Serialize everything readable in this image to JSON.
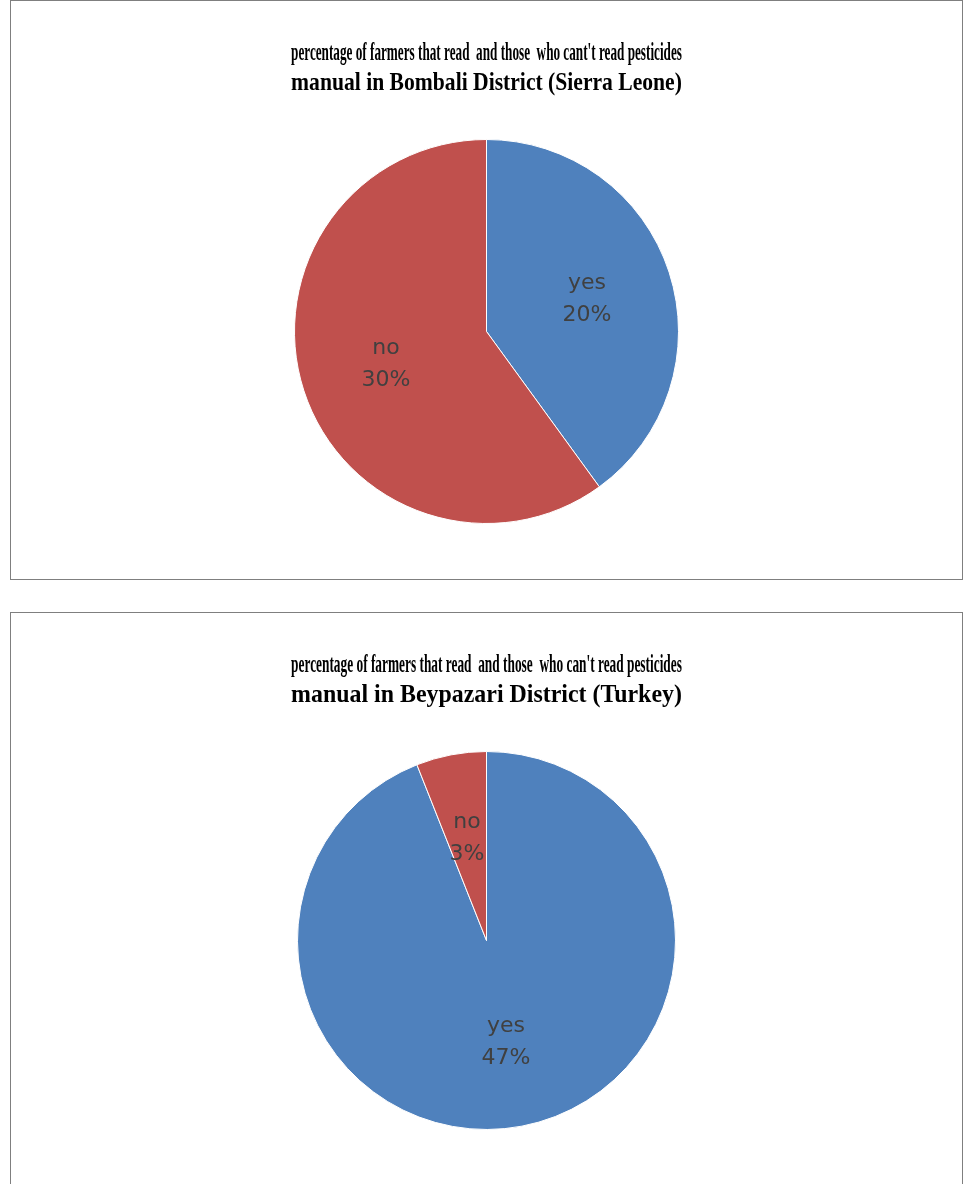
{
  "chart_data": [
    {
      "type": "pie",
      "title": "percentage of farmers that read  and those  who cant't read pesticides manual in Bombali District (Sierra Leone)",
      "categories": [
        "yes",
        "no"
      ],
      "values": [
        20,
        30
      ],
      "colors": [
        "#4f81bd",
        "#c0504d"
      ],
      "value_labels": [
        "20%",
        "30%"
      ],
      "legend": false
    },
    {
      "type": "pie",
      "title": "percentage of farmers that read  and those  who can't read pesticides manual in Beypazari District (Turkey)",
      "categories": [
        "yes",
        "no"
      ],
      "values": [
        47,
        3
      ],
      "colors": [
        "#4f81bd",
        "#c0504d"
      ],
      "value_labels": [
        "47%",
        "3%"
      ],
      "legend": false
    }
  ]
}
